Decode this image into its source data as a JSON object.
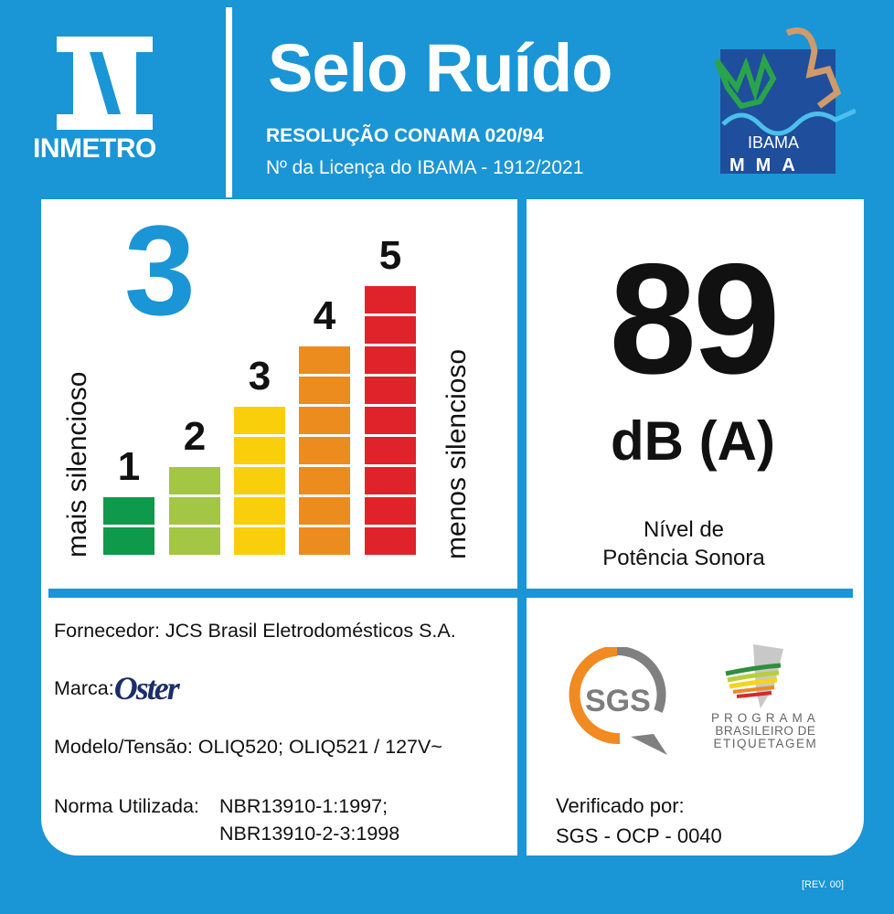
{
  "header": {
    "logo_text": "INMETRO",
    "title": "Selo Ruído",
    "resolution": "RESOLUÇÃO CONAMA 020/94",
    "license": "Nº da Licença do IBAMA - 1912/2021",
    "ibama_logo_text": "IBAMA",
    "mma_text": "MMA"
  },
  "classification": {
    "current_class": "3",
    "left_label": "mais silencioso",
    "right_label": "menos silencioso",
    "bars": [
      {
        "label": "1",
        "segments": 2,
        "color": "#0f9a4b"
      },
      {
        "label": "2",
        "segments": 3,
        "color": "#a4c645"
      },
      {
        "label": "3",
        "segments": 5,
        "color": "#f8cf0a"
      },
      {
        "label": "4",
        "segments": 7,
        "color": "#ec8b1e"
      },
      {
        "label": "5",
        "segments": 9,
        "color": "#e0222b"
      }
    ]
  },
  "noise": {
    "value": "89",
    "unit": "dB (A)",
    "caption_line1": "Nível de",
    "caption_line2": "Potência Sonora"
  },
  "info": {
    "supplier": "Fornecedor: JCS Brasil Eletrodomésticos S.A.",
    "brand_label": "Marca:",
    "brand": "Oster",
    "model": "Modelo/Tensão: OLIQ520; OLIQ521 / 127V~",
    "norm_label": "Norma Utilizada:",
    "norm_1": "NBR13910-1:1997;",
    "norm_2": "NBR13910-2-3:1998"
  },
  "certification": {
    "sgs_logo_text": "SGS",
    "pbe_line1": "PROGRAMA",
    "pbe_line2": "BRASILEIRO DE",
    "pbe_line3": "ETIQUETAGEM",
    "verified_label": "Verificado por:",
    "verified_by": "SGS - OCP - 0040"
  },
  "revision": "[REV. 00]",
  "colors": {
    "brand_blue": "#1a95d5"
  }
}
